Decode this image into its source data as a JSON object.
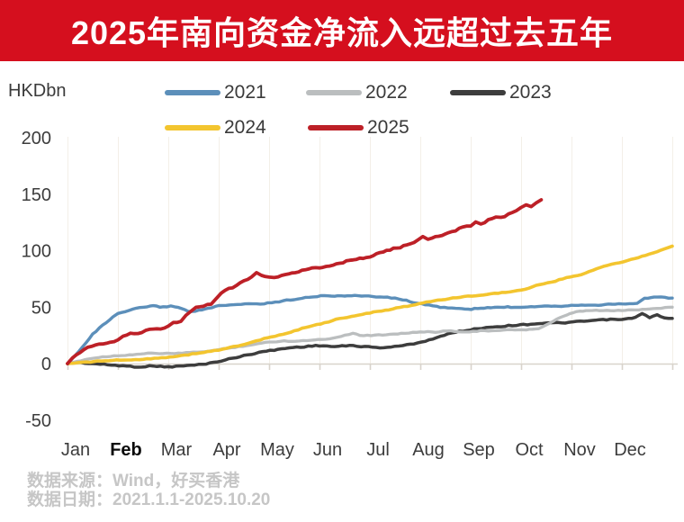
{
  "banner": {
    "title": "2025年南向资金净流入远超过去五年",
    "bg_color": "#d50f1e",
    "text_color": "#ffffff"
  },
  "footer": {
    "source_line": "数据来源：Wind，好买香港",
    "date_line": "数据日期：2021.1.1-2025.10.20"
  },
  "chart_data": {
    "type": "line",
    "title": "2025年南向资金净流入远超过去五年",
    "ylabel": "HKDbn",
    "xlabel": "",
    "ylim": [
      -50,
      200
    ],
    "y_ticks": [
      200,
      150,
      100,
      50,
      0,
      -50
    ],
    "x_tick_labels": [
      "Jan",
      "Feb",
      "Mar",
      "Apr",
      "May",
      "Jun",
      "Jul",
      "Aug",
      "Sep",
      "Oct",
      "Nov",
      "Dec"
    ],
    "grid": "faint-vertical-month-lines",
    "legend_position": "top",
    "axis_color": "#d8d3cb",
    "gridline_color": "#f3efe8",
    "x_unit": "months (0 = Jan 1, 12 = Dec 31)",
    "legend_order": [
      "2021",
      "2022",
      "2023",
      "2024",
      "2025"
    ],
    "draw_order": [
      "2023",
      "2022",
      "2021",
      "2024",
      "2025"
    ],
    "series": [
      {
        "name": "2021",
        "color": "#5c8fba",
        "final_value": 58,
        "points": [
          [
            0,
            0
          ],
          [
            0.15,
            7
          ],
          [
            0.3,
            15
          ],
          [
            0.5,
            26
          ],
          [
            0.7,
            34
          ],
          [
            0.9,
            41
          ],
          [
            1,
            44
          ],
          [
            1.15,
            46
          ],
          [
            1.3,
            48
          ],
          [
            1.5,
            50
          ],
          [
            1.7,
            51
          ],
          [
            1.9,
            50
          ],
          [
            2.05,
            51
          ],
          [
            2.2,
            50
          ],
          [
            2.4,
            46
          ],
          [
            2.6,
            47
          ],
          [
            2.8,
            49
          ],
          [
            3,
            51
          ],
          [
            3.3,
            52
          ],
          [
            3.6,
            53
          ],
          [
            3.9,
            53
          ],
          [
            4.2,
            55
          ],
          [
            4.5,
            57
          ],
          [
            4.8,
            59
          ],
          [
            5.1,
            60
          ],
          [
            5.5,
            60
          ],
          [
            5.9,
            60
          ],
          [
            6.2,
            59
          ],
          [
            6.5,
            58
          ],
          [
            6.8,
            55
          ],
          [
            7.1,
            52
          ],
          [
            7.4,
            50
          ],
          [
            7.7,
            49
          ],
          [
            7.95,
            48
          ],
          [
            8.2,
            49
          ],
          [
            8.6,
            50
          ],
          [
            9,
            50
          ],
          [
            9.4,
            51
          ],
          [
            9.8,
            51
          ],
          [
            10.2,
            52
          ],
          [
            10.6,
            52
          ],
          [
            11,
            53
          ],
          [
            11.3,
            53
          ],
          [
            11.45,
            58
          ],
          [
            11.7,
            59
          ],
          [
            12,
            58
          ]
        ]
      },
      {
        "name": "2022",
        "color": "#bbbebf",
        "final_value": 50,
        "points": [
          [
            0,
            0
          ],
          [
            0.2,
            2
          ],
          [
            0.4,
            4
          ],
          [
            0.7,
            6
          ],
          [
            1,
            7
          ],
          [
            1.3,
            8
          ],
          [
            1.6,
            9
          ],
          [
            1.9,
            9
          ],
          [
            2.2,
            9
          ],
          [
            2.5,
            10
          ],
          [
            2.8,
            11
          ],
          [
            3.1,
            13
          ],
          [
            3.4,
            15
          ],
          [
            3.7,
            17
          ],
          [
            4,
            19
          ],
          [
            4.3,
            20
          ],
          [
            4.6,
            20
          ],
          [
            4.9,
            21
          ],
          [
            5.2,
            22
          ],
          [
            5.5,
            25
          ],
          [
            5.66,
            27
          ],
          [
            5.8,
            25
          ],
          [
            6.1,
            25
          ],
          [
            6.4,
            26
          ],
          [
            6.7,
            27
          ],
          [
            7,
            28
          ],
          [
            7.3,
            28
          ],
          [
            7.6,
            29
          ],
          [
            7.9,
            28
          ],
          [
            8.2,
            29
          ],
          [
            8.5,
            29
          ],
          [
            8.8,
            30
          ],
          [
            9.1,
            30
          ],
          [
            9.35,
            31
          ],
          [
            9.5,
            34
          ],
          [
            9.7,
            39
          ],
          [
            9.9,
            43
          ],
          [
            10.1,
            46
          ],
          [
            10.35,
            47
          ],
          [
            10.7,
            47
          ],
          [
            11,
            47
          ],
          [
            11.4,
            48
          ],
          [
            11.7,
            49
          ],
          [
            12,
            50
          ]
        ]
      },
      {
        "name": "2023",
        "color": "#3d3d3d",
        "final_value": 40,
        "points": [
          [
            0,
            0
          ],
          [
            0.2,
            1
          ],
          [
            0.5,
            0
          ],
          [
            0.8,
            -1
          ],
          [
            1.1,
            -2
          ],
          [
            1.4,
            -3
          ],
          [
            1.7,
            -2
          ],
          [
            2,
            -3
          ],
          [
            2.3,
            -2
          ],
          [
            2.6,
            -1
          ],
          [
            2.9,
            1
          ],
          [
            3.2,
            4
          ],
          [
            3.5,
            7
          ],
          [
            3.8,
            10
          ],
          [
            4.1,
            12
          ],
          [
            4.4,
            14
          ],
          [
            4.7,
            15
          ],
          [
            5,
            16
          ],
          [
            5.3,
            15
          ],
          [
            5.6,
            16
          ],
          [
            5.9,
            15
          ],
          [
            6.2,
            14
          ],
          [
            6.5,
            15
          ],
          [
            6.8,
            17
          ],
          [
            7.1,
            20
          ],
          [
            7.4,
            24
          ],
          [
            7.7,
            28
          ],
          [
            8,
            30
          ],
          [
            8.3,
            32
          ],
          [
            8.6,
            33
          ],
          [
            8.9,
            34
          ],
          [
            9.2,
            35
          ],
          [
            9.5,
            36
          ],
          [
            9.8,
            36
          ],
          [
            10.1,
            37
          ],
          [
            10.4,
            38
          ],
          [
            10.7,
            39
          ],
          [
            11,
            39
          ],
          [
            11.2,
            40
          ],
          [
            11.4,
            44
          ],
          [
            11.55,
            41
          ],
          [
            11.7,
            43
          ],
          [
            11.85,
            40
          ],
          [
            12,
            40
          ]
        ]
      },
      {
        "name": "2024",
        "color": "#f3c52f",
        "final_value": 104,
        "points": [
          [
            0,
            0
          ],
          [
            0.3,
            1
          ],
          [
            0.6,
            2
          ],
          [
            0.9,
            3
          ],
          [
            1.2,
            3
          ],
          [
            1.5,
            4
          ],
          [
            1.8,
            5
          ],
          [
            2.1,
            6
          ],
          [
            2.4,
            8
          ],
          [
            2.7,
            10
          ],
          [
            3,
            12
          ],
          [
            3.3,
            15
          ],
          [
            3.6,
            18
          ],
          [
            3.9,
            22
          ],
          [
            4.2,
            25
          ],
          [
            4.5,
            29
          ],
          [
            4.8,
            33
          ],
          [
            5.1,
            36
          ],
          [
            5.4,
            40
          ],
          [
            5.7,
            42
          ],
          [
            6,
            45
          ],
          [
            6.3,
            47
          ],
          [
            6.6,
            50
          ],
          [
            6.9,
            52
          ],
          [
            7.2,
            55
          ],
          [
            7.5,
            57
          ],
          [
            7.8,
            59
          ],
          [
            8.1,
            60
          ],
          [
            8.4,
            62
          ],
          [
            8.7,
            63
          ],
          [
            9,
            65
          ],
          [
            9.3,
            69
          ],
          [
            9.6,
            72
          ],
          [
            9.9,
            76
          ],
          [
            10.2,
            79
          ],
          [
            10.5,
            84
          ],
          [
            10.8,
            88
          ],
          [
            11.1,
            91
          ],
          [
            11.4,
            95
          ],
          [
            11.7,
            99
          ],
          [
            12,
            104
          ]
        ]
      },
      {
        "name": "2025",
        "color": "#bd2027",
        "final_value": 145,
        "ends_at_month": 9.4,
        "points": [
          [
            0,
            0
          ],
          [
            0.1,
            5
          ],
          [
            0.25,
            10
          ],
          [
            0.4,
            14
          ],
          [
            0.55,
            17
          ],
          [
            0.7,
            18
          ],
          [
            0.85,
            19
          ],
          [
            1,
            21
          ],
          [
            1.1,
            24
          ],
          [
            1.25,
            27
          ],
          [
            1.4,
            26
          ],
          [
            1.55,
            30
          ],
          [
            1.7,
            31
          ],
          [
            1.85,
            31
          ],
          [
            2,
            33
          ],
          [
            2.1,
            36
          ],
          [
            2.25,
            38
          ],
          [
            2.35,
            43
          ],
          [
            2.45,
            47
          ],
          [
            2.55,
            50
          ],
          [
            2.7,
            51
          ],
          [
            2.85,
            53
          ],
          [
            2.95,
            58
          ],
          [
            3.05,
            63
          ],
          [
            3.2,
            66
          ],
          [
            3.35,
            69
          ],
          [
            3.5,
            73
          ],
          [
            3.65,
            77
          ],
          [
            3.75,
            80
          ],
          [
            3.85,
            78
          ],
          [
            4,
            77
          ],
          [
            4.1,
            76
          ],
          [
            4.25,
            78
          ],
          [
            4.45,
            80
          ],
          [
            4.65,
            82
          ],
          [
            4.85,
            84
          ],
          [
            5,
            85
          ],
          [
            5.2,
            87
          ],
          [
            5.4,
            89
          ],
          [
            5.6,
            91
          ],
          [
            5.8,
            93
          ],
          [
            6,
            95
          ],
          [
            6.2,
            98
          ],
          [
            6.4,
            101
          ],
          [
            6.6,
            103
          ],
          [
            6.8,
            106
          ],
          [
            6.95,
            109
          ],
          [
            7.05,
            112
          ],
          [
            7.15,
            110
          ],
          [
            7.3,
            112
          ],
          [
            7.5,
            115
          ],
          [
            7.7,
            118
          ],
          [
            7.85,
            121
          ],
          [
            8,
            122
          ],
          [
            8.1,
            125
          ],
          [
            8.2,
            123
          ],
          [
            8.35,
            127
          ],
          [
            8.5,
            130
          ],
          [
            8.6,
            129
          ],
          [
            8.75,
            132
          ],
          [
            8.9,
            135
          ],
          [
            9,
            138
          ],
          [
            9.1,
            140
          ],
          [
            9.2,
            139
          ],
          [
            9.3,
            142
          ],
          [
            9.4,
            145
          ]
        ]
      }
    ]
  }
}
